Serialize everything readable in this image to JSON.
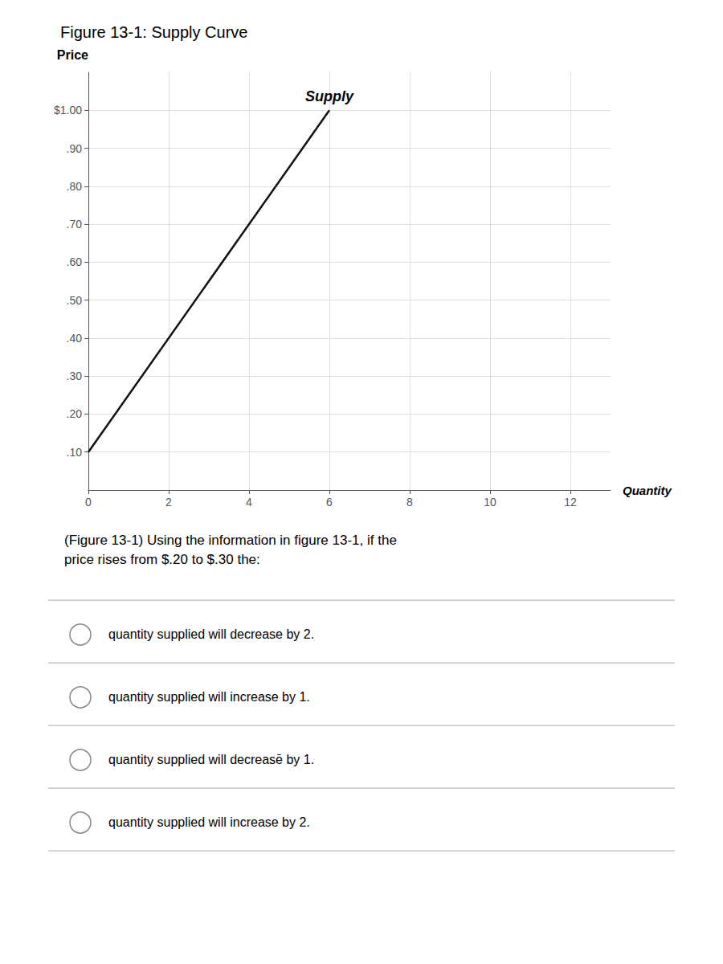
{
  "chart_data": {
    "type": "line",
    "title": "Figure 13-1: Supply Curve",
    "xlabel": "Quantity",
    "ylabel": "Price",
    "x": [
      0,
      6
    ],
    "series": [
      {
        "name": "Supply",
        "color": "#111111",
        "values": [
          0.1,
          1.0
        ]
      }
    ],
    "xlim": [
      0,
      13
    ],
    "ylim": [
      0,
      1.1
    ],
    "xticks": [
      0,
      2,
      4,
      6,
      8,
      10,
      12
    ],
    "yticks": [
      {
        "value": 1.0,
        "label": "$1.00"
      },
      {
        "value": 0.9,
        "label": ".90"
      },
      {
        "value": 0.8,
        "label": ".80"
      },
      {
        "value": 0.7,
        "label": ".70"
      },
      {
        "value": 0.6,
        "label": ".60"
      },
      {
        "value": 0.5,
        "label": ".50"
      },
      {
        "value": 0.4,
        "label": ".40"
      },
      {
        "value": 0.3,
        "label": ".30"
      },
      {
        "value": 0.2,
        "label": ".20"
      },
      {
        "value": 0.1,
        "label": ".10"
      }
    ],
    "grid": true,
    "annotations": [
      "(Figure 13-1) Using the information in figure 13-1, if the\nprice rises from $.20 to $.30 the:",
      "quantity supplied will decrease by 2.",
      "quantity supplied will increase by 1.",
      "quantity supplied will decreasē by 1.",
      "quantity supplied will increase by 2."
    ]
  }
}
